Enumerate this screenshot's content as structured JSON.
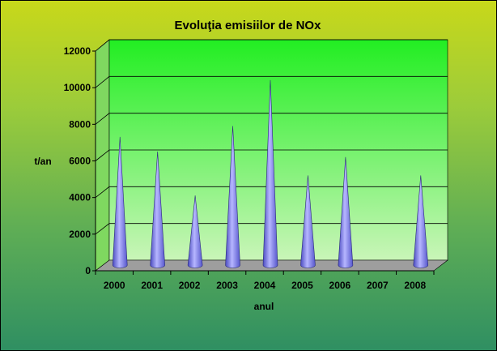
{
  "chart_data": {
    "type": "bar",
    "title": "Evoluţia emisiilor de NOx",
    "xlabel": "anul",
    "ylabel": "t/an",
    "categories": [
      "2000",
      "2001",
      "2002",
      "2003",
      "2004",
      "2005",
      "2006",
      "2007",
      "2008"
    ],
    "series": [
      {
        "values": [
          7000,
          6200,
          3800,
          7600,
          10100,
          4900,
          5900,
          null,
          4900
        ]
      }
    ],
    "ylim": [
      0,
      12000
    ],
    "yticks": [
      "0",
      "2000",
      "4000",
      "6000",
      "8000",
      "10000",
      "12000"
    ],
    "grid": true,
    "legend": "none",
    "bar_shape": "cone",
    "colors": {
      "cone": "#8c8cf2",
      "cone_dark": "#4a4ac0",
      "plot_wall": "#33ee33",
      "floor": "#a0a0a0"
    }
  }
}
